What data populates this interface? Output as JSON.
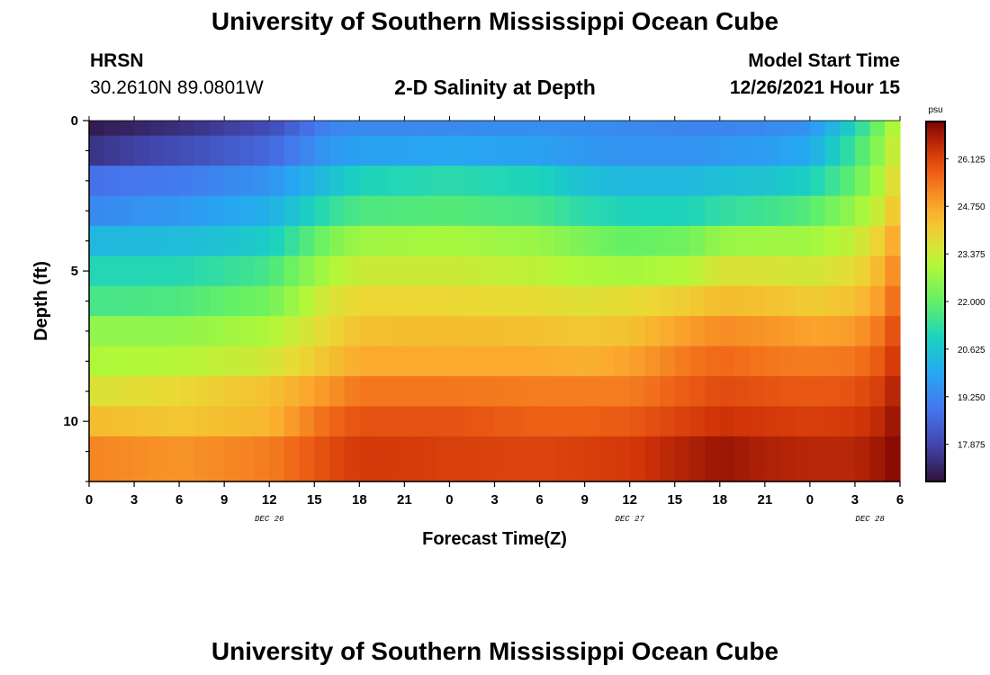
{
  "page": {
    "title": "University of Southern Mississippi Ocean Cube",
    "station": "HRSN",
    "coords": "30.2610N  89.0801W",
    "subtitle": "2-D Salinity at Depth",
    "model_label": "Model Start Time",
    "model_time": "12/26/2021 Hour 15",
    "footer_title": "University of Southern Mississippi Ocean Cube"
  },
  "chart_data": {
    "type": "heatmap",
    "title": "2-D Salinity at Depth",
    "xlabel": "Forecast Time(Z)",
    "ylabel": "Depth (ft)",
    "x_range_hours": [
      0,
      54
    ],
    "y_range_ft": [
      0,
      12
    ],
    "x_ticks": [
      {
        "h": 0,
        "label": "0"
      },
      {
        "h": 3,
        "label": "3"
      },
      {
        "h": 6,
        "label": "6"
      },
      {
        "h": 9,
        "label": "9"
      },
      {
        "h": 12,
        "label": "12"
      },
      {
        "h": 15,
        "label": "15"
      },
      {
        "h": 18,
        "label": "18"
      },
      {
        "h": 21,
        "label": "21"
      },
      {
        "h": 24,
        "label": "0"
      },
      {
        "h": 27,
        "label": "3"
      },
      {
        "h": 30,
        "label": "6"
      },
      {
        "h": 33,
        "label": "9"
      },
      {
        "h": 36,
        "label": "12"
      },
      {
        "h": 39,
        "label": "15"
      },
      {
        "h": 42,
        "label": "18"
      },
      {
        "h": 45,
        "label": "21"
      },
      {
        "h": 48,
        "label": "0"
      },
      {
        "h": 51,
        "label": "3"
      },
      {
        "h": 54,
        "label": "6"
      }
    ],
    "date_labels": [
      {
        "h": 12,
        "label": "DEC 26"
      },
      {
        "h": 36,
        "label": "DEC 27"
      },
      {
        "h": 52,
        "label": "DEC 28"
      }
    ],
    "y_ticks": [
      {
        "d": 0,
        "label": "0"
      },
      {
        "d": 5,
        "label": "5"
      },
      {
        "d": 10,
        "label": "10"
      }
    ],
    "colorbar": {
      "unit": "psu",
      "min": 16.8,
      "max": 27.2,
      "ticks": [
        "17.875",
        "19.250",
        "20.625",
        "22.000",
        "23.375",
        "24.750",
        "26.125"
      ]
    },
    "depth_layers_ft": [
      0.5,
      1.5,
      2.5,
      3.5,
      4.5,
      5.5,
      6.5,
      7.5,
      8.5,
      9.5,
      10.5,
      11.5
    ],
    "layer_top_ft": [
      0,
      0.5,
      1.5,
      2.5,
      3.5,
      4.5,
      5.5,
      6.5,
      7.5,
      8.5,
      9.5,
      10.5
    ],
    "layer_bottom_ft": [
      0.5,
      1.5,
      2.5,
      3.5,
      4.5,
      5.5,
      6.5,
      7.5,
      8.5,
      9.5,
      10.5,
      12.0
    ],
    "time_hours": [
      0,
      6,
      12,
      16,
      18,
      24,
      30,
      33,
      36,
      40,
      42,
      45,
      48,
      51,
      53,
      54
    ],
    "salinity_psu": [
      [
        17.0,
        17.4,
        18.0,
        19.2,
        19.3,
        19.3,
        19.4,
        19.4,
        19.3,
        19.2,
        19.2,
        19.3,
        19.5,
        21.0,
        22.5,
        23.5
      ],
      [
        17.5,
        18.0,
        18.6,
        19.6,
        19.8,
        19.9,
        19.8,
        19.6,
        19.5,
        19.5,
        19.6,
        19.7,
        20.0,
        21.5,
        22.8,
        23.8
      ],
      [
        18.8,
        19.0,
        19.5,
        20.5,
        21.0,
        21.2,
        21.0,
        20.5,
        20.3,
        20.3,
        20.5,
        20.6,
        20.9,
        22.0,
        23.2,
        24.2
      ],
      [
        19.3,
        19.6,
        20.1,
        21.3,
        21.7,
        21.8,
        21.6,
        21.2,
        21.0,
        21.0,
        21.3,
        21.5,
        21.8,
        22.7,
        23.6,
        24.6
      ],
      [
        20.3,
        20.4,
        20.8,
        22.3,
        22.8,
        22.9,
        22.7,
        22.3,
        22.0,
        22.2,
        22.7,
        22.8,
        22.8,
        23.3,
        24.2,
        25.1
      ],
      [
        21.1,
        21.1,
        21.6,
        23.0,
        23.4,
        23.4,
        23.2,
        23.0,
        22.9,
        23.1,
        23.6,
        23.6,
        23.5,
        23.8,
        24.6,
        25.5
      ],
      [
        21.6,
        21.7,
        22.2,
        23.6,
        23.9,
        23.9,
        23.8,
        23.7,
        23.8,
        24.1,
        24.4,
        24.3,
        24.1,
        24.3,
        25.0,
        25.9
      ],
      [
        22.6,
        22.6,
        23.0,
        23.9,
        24.3,
        24.4,
        24.3,
        24.2,
        24.3,
        24.9,
        25.1,
        25.0,
        24.8,
        24.9,
        25.5,
        26.3
      ],
      [
        23.0,
        23.1,
        23.5,
        24.3,
        24.7,
        24.7,
        24.7,
        24.6,
        24.8,
        25.4,
        25.6,
        25.4,
        25.3,
        25.4,
        25.9,
        26.6
      ],
      [
        23.6,
        23.9,
        24.3,
        25.0,
        25.4,
        25.4,
        25.3,
        25.3,
        25.3,
        25.8,
        26.0,
        25.9,
        25.8,
        25.9,
        26.3,
        26.9
      ],
      [
        24.4,
        24.2,
        24.5,
        25.6,
        25.9,
        25.9,
        25.7,
        25.7,
        25.8,
        26.2,
        26.4,
        26.3,
        26.2,
        26.3,
        26.6,
        27.1
      ],
      [
        25.2,
        25.0,
        25.3,
        26.0,
        26.3,
        26.2,
        26.1,
        26.2,
        26.3,
        26.7,
        26.9,
        26.7,
        26.6,
        26.6,
        26.9,
        27.2
      ]
    ]
  }
}
